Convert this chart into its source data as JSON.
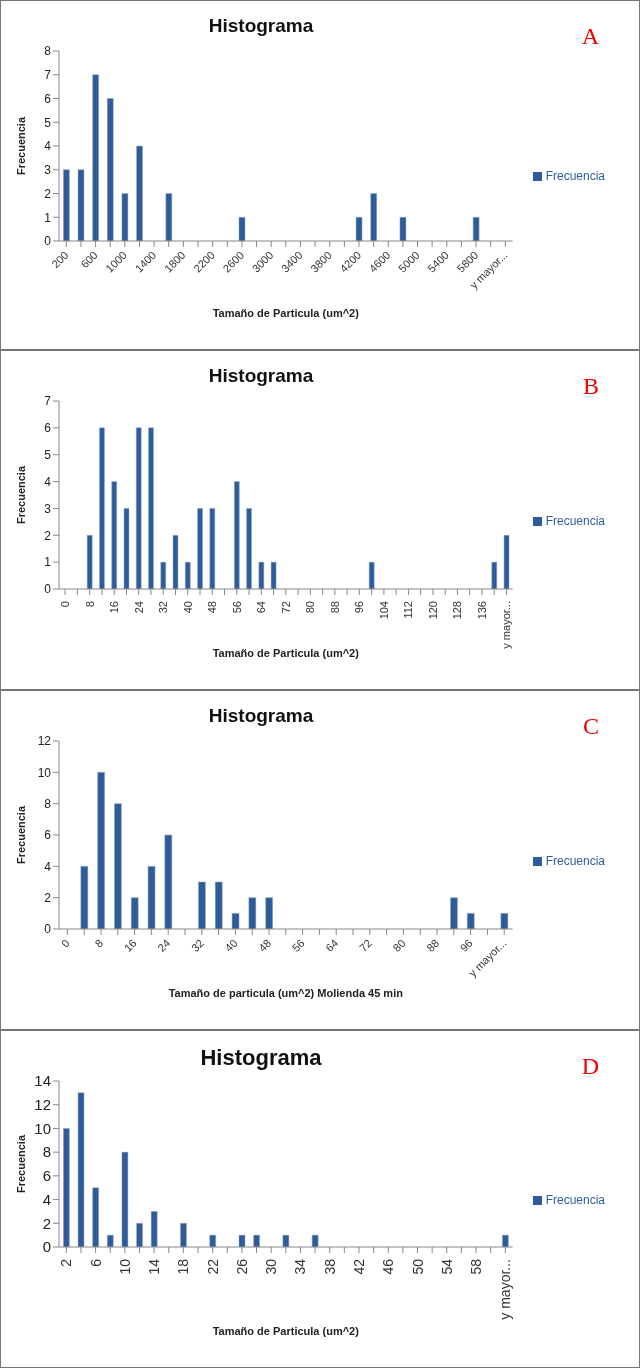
{
  "chart_data": [
    {
      "type": "bar",
      "title": "Histograma",
      "xlabel": "Tamaño de Particula (um^2)",
      "ylabel": "Frecuencia",
      "annotations": [
        "A"
      ],
      "legend": "right",
      "categories": [
        "200",
        null,
        "600",
        null,
        "1000",
        null,
        "1400",
        null,
        "1800",
        null,
        "2200",
        null,
        "2600",
        null,
        "3000",
        null,
        "3400",
        null,
        "3800",
        null,
        "4200",
        null,
        "4600",
        null,
        "5000",
        null,
        "5400",
        null,
        "5800",
        null,
        "y mayor..."
      ],
      "series": [
        {
          "name": "Frecuencia",
          "color": "#2e5c9a",
          "values": [
            3,
            3,
            7,
            6,
            2,
            4,
            0,
            2,
            0,
            0,
            0,
            0,
            1,
            0,
            0,
            0,
            0,
            0,
            0,
            0,
            1,
            2,
            0,
            1,
            0,
            0,
            0,
            0,
            1,
            0,
            0
          ]
        }
      ],
      "ylim": [
        0,
        8
      ],
      "yticks": [
        0,
        1,
        2,
        3,
        4,
        5,
        6,
        7,
        8
      ],
      "grid": false
    },
    {
      "type": "bar",
      "title": "Histograma",
      "xlabel": "Tamaño de Particula (um^2)",
      "ylabel": "Frecuencia",
      "annotations": [
        "B"
      ],
      "legend": "right",
      "categories": [
        "0",
        null,
        "8",
        null,
        "16",
        null,
        "24",
        null,
        "32",
        null,
        "40",
        null,
        "48",
        null,
        "56",
        null,
        "64",
        null,
        "72",
        null,
        "80",
        null,
        "88",
        null,
        "96",
        null,
        "104",
        null,
        "112",
        null,
        "120",
        null,
        "128",
        null,
        "136",
        null,
        "y mayor..."
      ],
      "series": [
        {
          "name": "Frecuencia",
          "color": "#2e5c9a",
          "values": [
            0,
            0,
            2,
            6,
            4,
            3,
            6,
            6,
            1,
            2,
            1,
            3,
            3,
            0,
            4,
            3,
            1,
            1,
            0,
            0,
            0,
            0,
            0,
            0,
            0,
            1,
            0,
            0,
            0,
            0,
            0,
            0,
            0,
            0,
            0,
            1,
            2
          ]
        }
      ],
      "ylim": [
        0,
        7
      ],
      "yticks": [
        0,
        1,
        2,
        3,
        4,
        5,
        6,
        7
      ],
      "grid": false
    },
    {
      "type": "bar",
      "title": "Histograma",
      "xlabel": "Tamaño de particula (um^2) Molienda 45 min",
      "ylabel": "Frecuencia",
      "annotations": [
        "C"
      ],
      "legend": "right",
      "categories": [
        "0",
        null,
        "8",
        null,
        "16",
        null,
        "24",
        null,
        "32",
        null,
        "40",
        null,
        "48",
        null,
        "56",
        null,
        "64",
        null,
        "72",
        null,
        "80",
        null,
        "88",
        null,
        "96",
        null,
        "y mayor..."
      ],
      "series": [
        {
          "name": "Frecuencia",
          "color": "#2e5c9a",
          "values": [
            0,
            4,
            10,
            8,
            2,
            4,
            6,
            0,
            3,
            3,
            1,
            2,
            2,
            0,
            0,
            0,
            0,
            0,
            0,
            0,
            0,
            0,
            0,
            2,
            1,
            0,
            1
          ]
        }
      ],
      "ylim": [
        0,
        12
      ],
      "yticks": [
        0,
        2,
        4,
        6,
        8,
        10,
        12
      ],
      "grid": false
    },
    {
      "type": "bar",
      "title": "Histograma",
      "xlabel": "Tamaño de Particula (um^2)",
      "ylabel": "Frecuencia",
      "annotations": [
        "D"
      ],
      "legend": "right",
      "categories": [
        "2",
        null,
        "6",
        null,
        "10",
        null,
        "14",
        null,
        "18",
        null,
        "22",
        null,
        "26",
        null,
        "30",
        null,
        "34",
        null,
        "38",
        null,
        "42",
        null,
        "46",
        null,
        "50",
        null,
        "54",
        null,
        "58",
        null,
        "y mayor..."
      ],
      "series": [
        {
          "name": "Frecuencia",
          "color": "#2e5c9a",
          "values": [
            10,
            13,
            5,
            1,
            8,
            2,
            3,
            0,
            2,
            0,
            1,
            0,
            1,
            1,
            0,
            1,
            0,
            1,
            0,
            0,
            0,
            0,
            0,
            0,
            0,
            0,
            0,
            0,
            0,
            0,
            1
          ]
        }
      ],
      "ylim": [
        0,
        14
      ],
      "yticks": [
        0,
        2,
        4,
        6,
        8,
        10,
        12,
        14
      ],
      "grid": false
    }
  ]
}
